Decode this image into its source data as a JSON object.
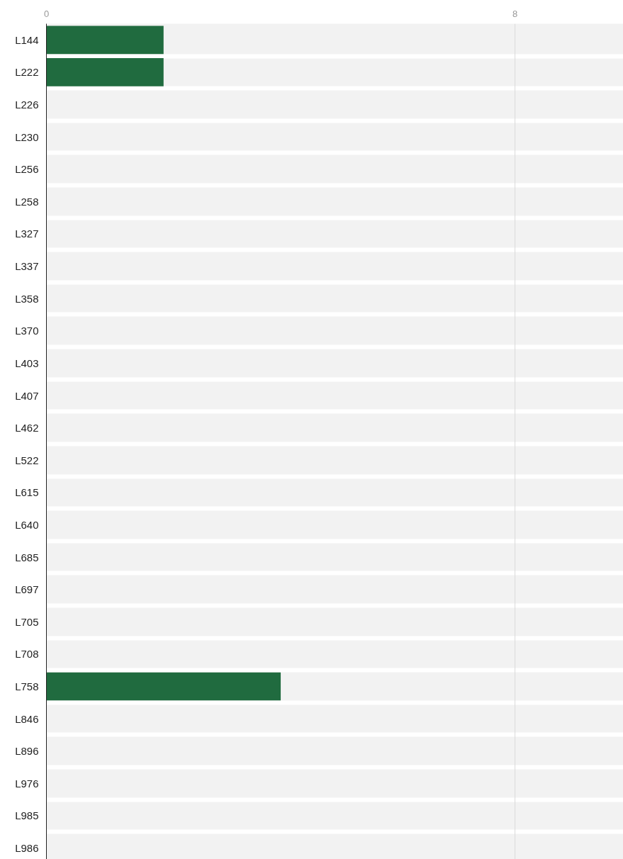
{
  "chart_data": {
    "type": "bar",
    "orientation": "horizontal",
    "categories": [
      "L144",
      "L222",
      "L226",
      "L230",
      "L256",
      "L258",
      "L327",
      "L337",
      "L358",
      "L370",
      "L403",
      "L407",
      "L462",
      "L522",
      "L615",
      "L640",
      "L685",
      "L697",
      "L705",
      "L708",
      "L758",
      "L846",
      "L896",
      "L976",
      "L985",
      "L986"
    ],
    "values": [
      2,
      2,
      0,
      0,
      0,
      0,
      0,
      0,
      0,
      0,
      0,
      0,
      0,
      0,
      0,
      0,
      0,
      0,
      0,
      0,
      4,
      0,
      0,
      0,
      0,
      0
    ],
    "color": "#206b3f",
    "xlim": [
      0,
      9.85
    ],
    "xticks": [
      0,
      8
    ],
    "ref_lines": [
      {
        "axis": "x",
        "value": 8,
        "color": "#d9d9d9"
      }
    ]
  }
}
